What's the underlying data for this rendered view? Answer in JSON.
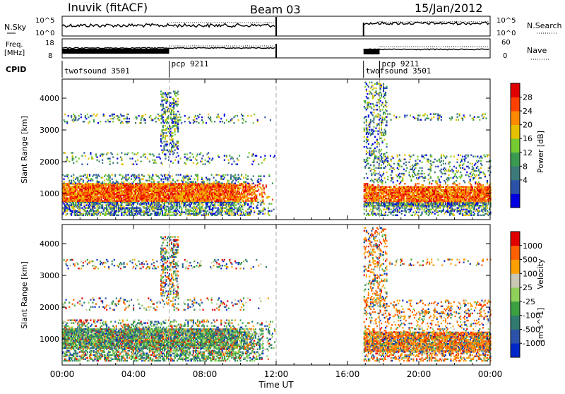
{
  "header": {
    "station": "Inuvik (fitACF)",
    "beam": "Beam 03",
    "date": "15/Jan/2012"
  },
  "top_panels": {
    "nsky_label": "N.Sky",
    "nsky_ticks": [
      "10^5",
      "10^0"
    ],
    "nsearch_label": "N.Search",
    "nsearch_ticks": [
      "10^5",
      "10^0"
    ],
    "freq_label_1": "Freq.",
    "freq_label_2": "[MHz]",
    "freq_ticks": [
      "18",
      "8"
    ],
    "nave_label": "Nave",
    "nave_ticks": [
      "60",
      "0"
    ],
    "cpid_label": "CPID"
  },
  "cpid_segments": [
    {
      "label": "twofsound 3501",
      "start_hour": 0
    },
    {
      "label": "pcp 9211",
      "start_hour": 6
    },
    {
      "label": "twofsound 3501",
      "start_hour": 16.9
    },
    {
      "label": "pcp 9211",
      "start_hour": 17.8
    }
  ],
  "chart_data": [
    {
      "type": "heatmap",
      "panel": "power",
      "ylabel": "Slant Range [km]",
      "yticks": [
        1000,
        2000,
        3000,
        4000
      ],
      "ylim": [
        180,
        4600
      ],
      "xlim": [
        0,
        24
      ],
      "colorbar_label": "Power [dB]",
      "colorbar_ticks": [
        "28",
        "24",
        "20",
        "16",
        "12",
        "8",
        "4"
      ],
      "colors": [
        "#0000e0",
        "#2c52a8",
        "#3c7a7a",
        "#3a9a50",
        "#74cc30",
        "#e6c000",
        "#ff8a00",
        "#ff4000",
        "#e00000"
      ],
      "data_gaps_hours": [
        [
          12,
          16.9
        ]
      ],
      "mode_change_hours": [
        6,
        12,
        17.8
      ]
    },
    {
      "type": "heatmap",
      "panel": "velocity",
      "ylabel": "Slant Range [km]",
      "yticks": [
        1000,
        2000,
        3000,
        4000
      ],
      "ylim": [
        180,
        4600
      ],
      "xlim": [
        0,
        24
      ],
      "colorbar_label": "Velocity",
      "colorbar_unit": "[m s^-1]",
      "colorbar_ticks": [
        "1000",
        "500",
        "100",
        "25",
        "-25",
        "-100",
        "-500",
        "-1000"
      ],
      "colors": [
        "#0028c8",
        "#2c52a8",
        "#307a70",
        "#3aa040",
        "#8ed05a",
        "#c8c8b4",
        "#ffa000",
        "#ff6000",
        "#e00000"
      ],
      "data_gaps_hours": [
        [
          12,
          16.9
        ]
      ],
      "mode_change_hours": [
        6,
        12,
        17.8
      ]
    }
  ],
  "x_axis": {
    "label": "Time UT",
    "ticks": [
      "00:00",
      "04:00",
      "08:00",
      "12:00",
      "16:00",
      "20:00",
      "00:00"
    ]
  }
}
